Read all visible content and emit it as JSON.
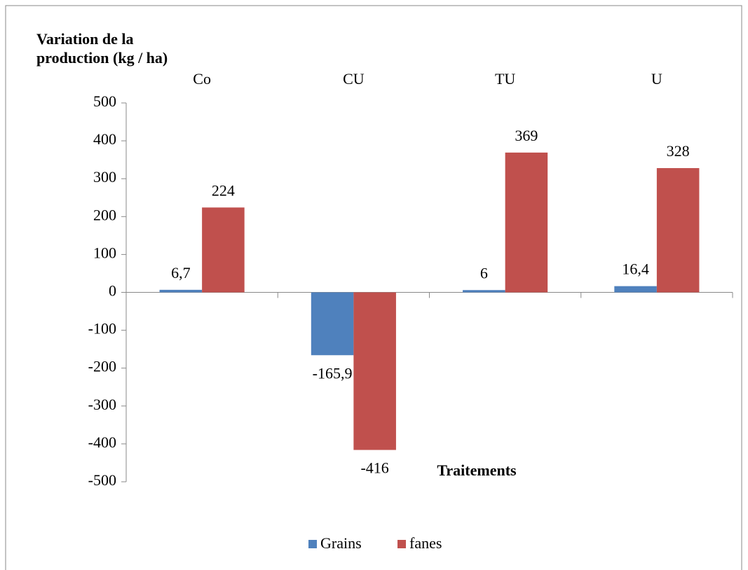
{
  "chart_data": {
    "type": "bar",
    "y_axis_label": "Variation de la production (kg / ha)",
    "x_axis_label": "Traitements",
    "categories": [
      "Co",
      "CU",
      "TU",
      "U"
    ],
    "series": [
      {
        "name": "Grains",
        "color": "#4f81bd",
        "values": [
          6.7,
          -165.9,
          6,
          16.4
        ],
        "value_labels": [
          "6,7",
          "-165,9",
          "6",
          "16,4"
        ]
      },
      {
        "name": "fanes",
        "color": "#c0504d",
        "values": [
          224,
          -416,
          369,
          328
        ],
        "value_labels": [
          "224",
          "-416",
          "369",
          "328"
        ]
      }
    ],
    "ylim": [
      -500,
      500
    ],
    "yticks": [
      -500,
      -400,
      -300,
      -200,
      -100,
      0,
      100,
      200,
      300,
      400,
      500
    ],
    "legend": "bottom"
  }
}
